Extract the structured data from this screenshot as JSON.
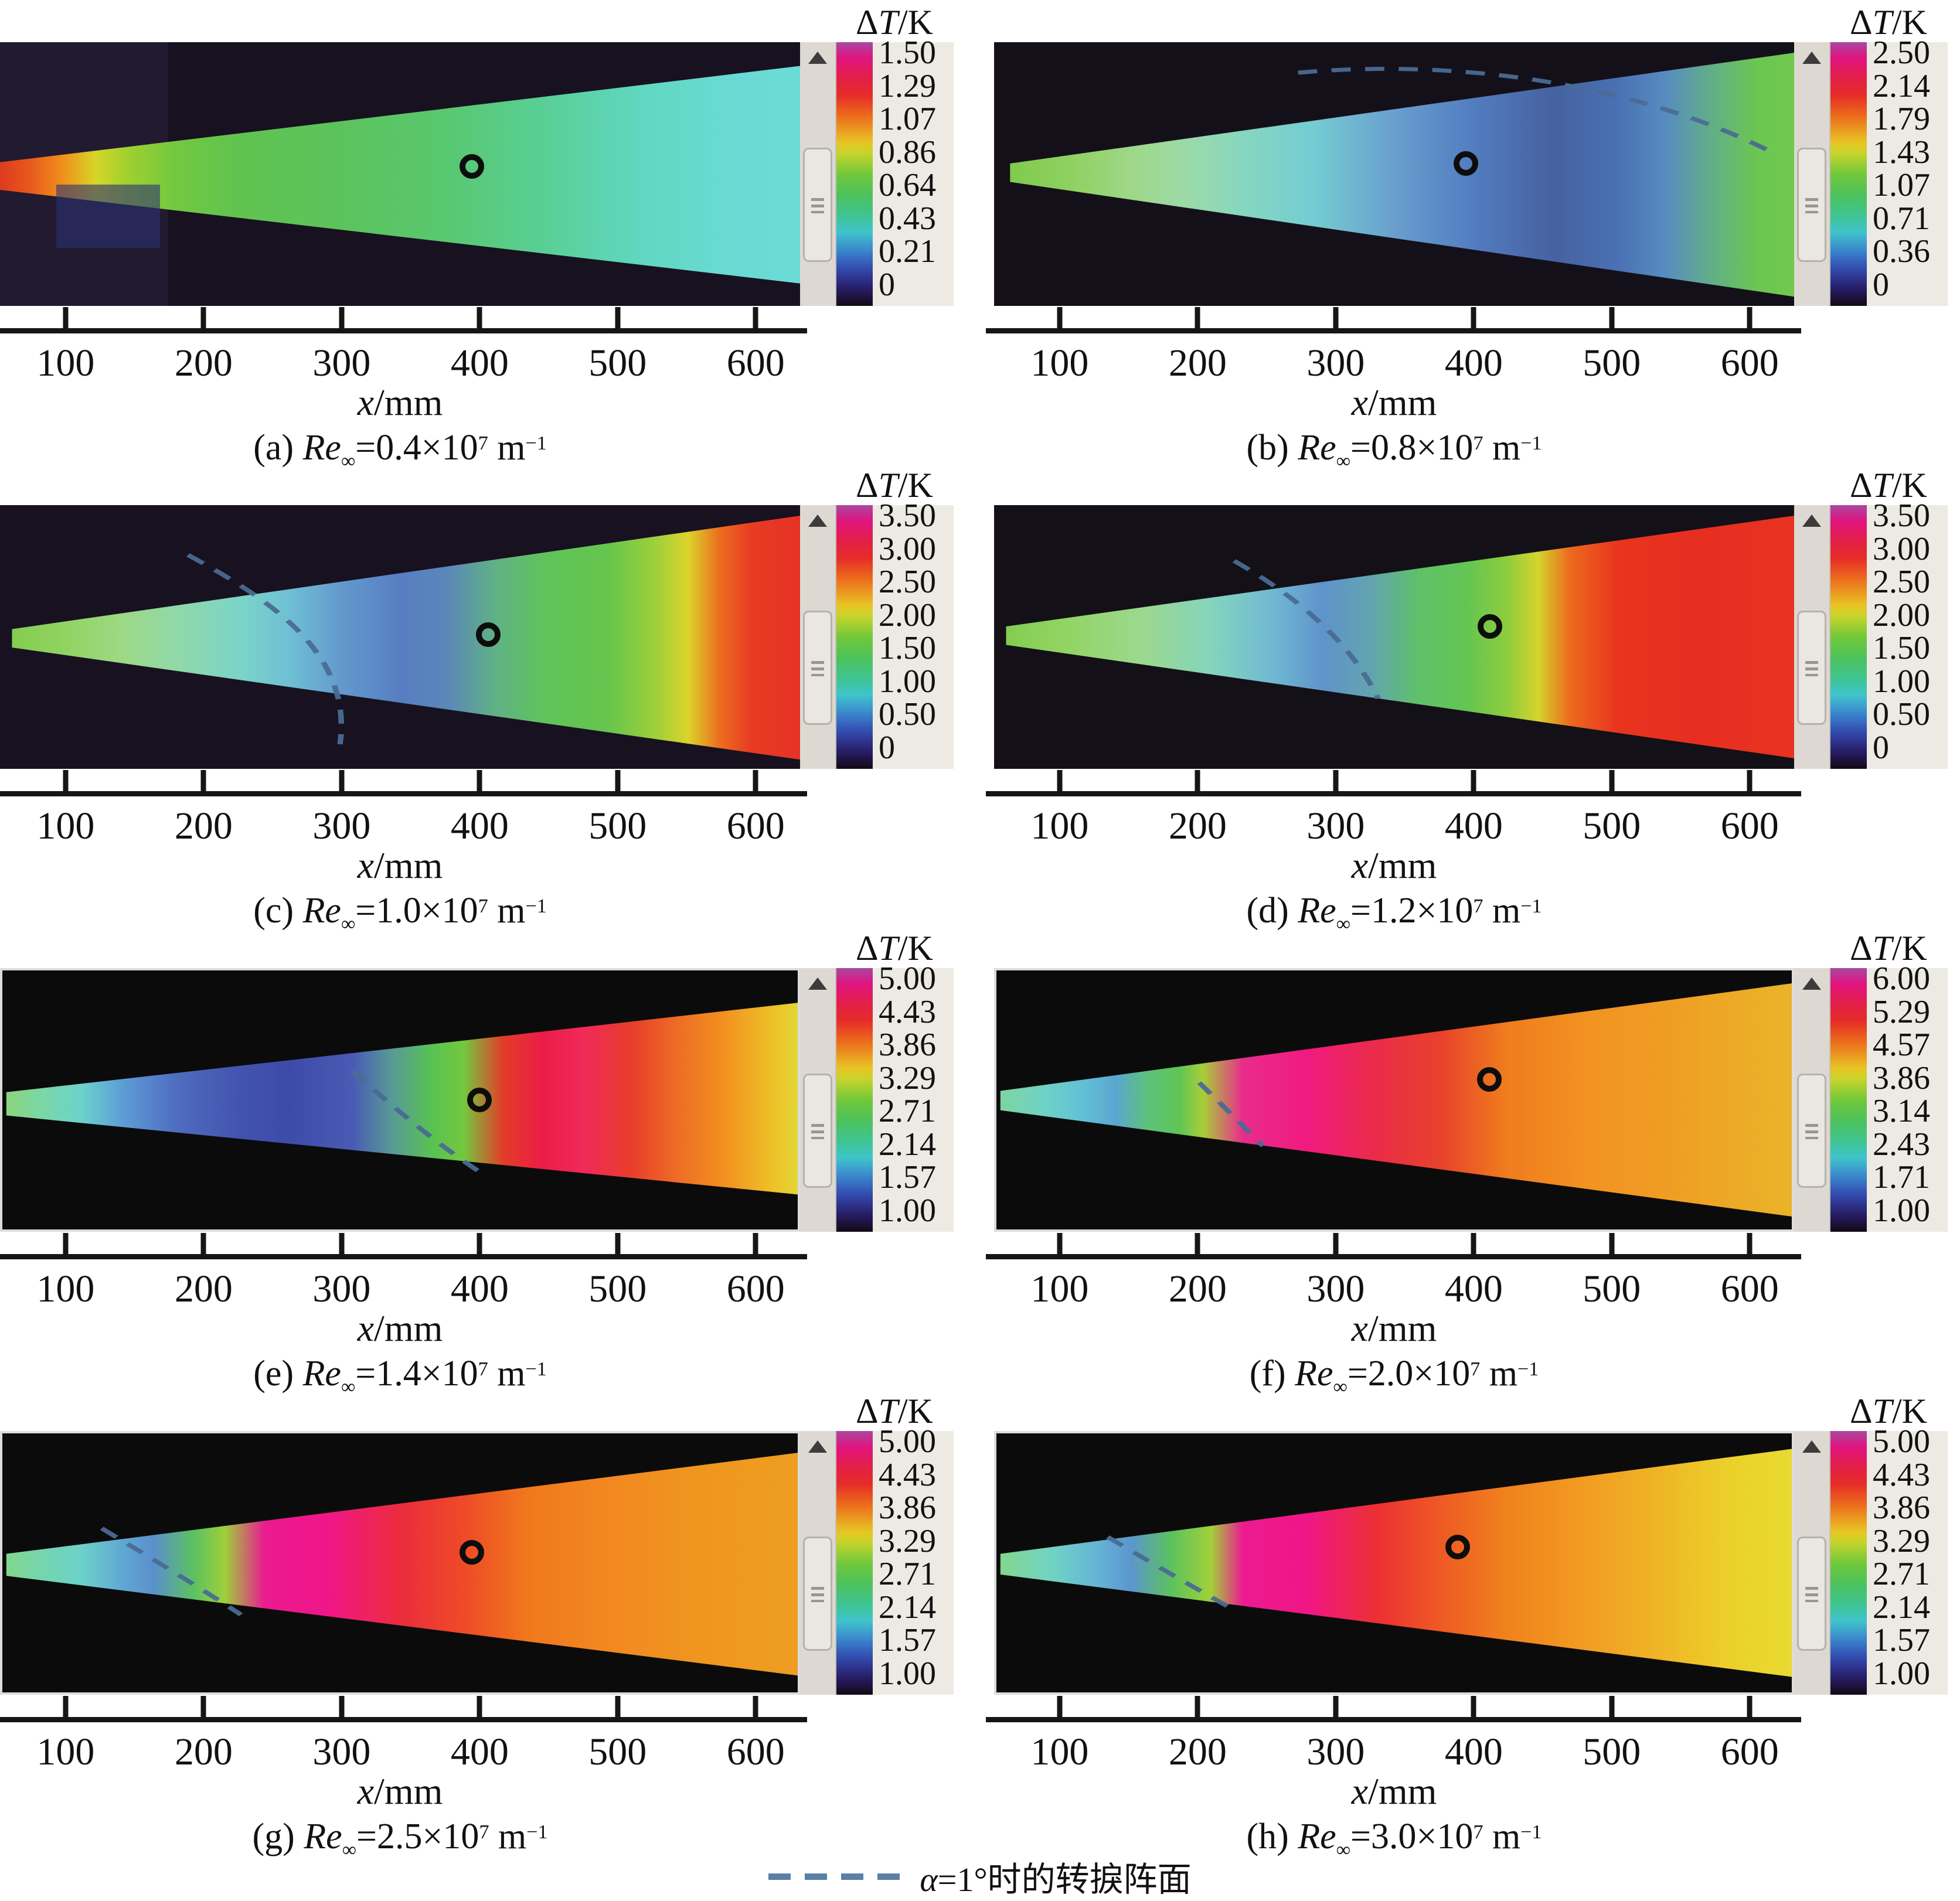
{
  "figure": {
    "colorbar_title": {
      "delta": "Δ",
      "var": "T",
      "rest": "/K"
    },
    "x_axis": {
      "var": "x",
      "rest": "/mm",
      "ticks": [
        "100",
        "200",
        "300",
        "400",
        "500",
        "600"
      ]
    },
    "legend": {
      "var": "α",
      "rest": "=1°时的转捩阵面",
      "dash_color": "#5b7fa6"
    },
    "panels": [
      {
        "id": "a",
        "caption": {
          "prefix": "(a) ",
          "re": "Re",
          "sub": "∞",
          "mid": "=0.4×10",
          "sup": "7",
          "tail": " m",
          "sup2": "−1"
        },
        "colorbar_ticks": [
          "1.50",
          "1.29",
          "1.07",
          "0.86",
          "0.64",
          "0.43",
          "0.21",
          "0"
        ]
      },
      {
        "id": "b",
        "caption": {
          "prefix": "(b) ",
          "re": "Re",
          "sub": "∞",
          "mid": "=0.8×10",
          "sup": "7",
          "tail": " m",
          "sup2": "−1"
        },
        "colorbar_ticks": [
          "2.50",
          "2.14",
          "1.79",
          "1.43",
          "1.07",
          "0.71",
          "0.36",
          "0"
        ]
      },
      {
        "id": "c",
        "caption": {
          "prefix": "(c) ",
          "re": "Re",
          "sub": "∞",
          "mid": "=1.0×10",
          "sup": "7",
          "tail": " m",
          "sup2": "−1"
        },
        "colorbar_ticks": [
          "3.50",
          "3.00",
          "2.50",
          "2.00",
          "1.50",
          "1.00",
          "0.50",
          "0"
        ]
      },
      {
        "id": "d",
        "caption": {
          "prefix": "(d) ",
          "re": "Re",
          "sub": "∞",
          "mid": "=1.2×10",
          "sup": "7",
          "tail": " m",
          "sup2": "−1"
        },
        "colorbar_ticks": [
          "3.50",
          "3.00",
          "2.50",
          "2.00",
          "1.50",
          "1.00",
          "0.50",
          "0"
        ]
      },
      {
        "id": "e",
        "caption": {
          "prefix": "(e) ",
          "re": "Re",
          "sub": "∞",
          "mid": "=1.4×10",
          "sup": "7",
          "tail": " m",
          "sup2": "−1"
        },
        "colorbar_ticks": [
          "5.00",
          "4.43",
          "3.86",
          "3.29",
          "2.71",
          "2.14",
          "1.57",
          "1.00"
        ]
      },
      {
        "id": "f",
        "caption": {
          "prefix": "(f) ",
          "re": "Re",
          "sub": "∞",
          "mid": "=2.0×10",
          "sup": "7",
          "tail": " m",
          "sup2": "−1"
        },
        "colorbar_ticks": [
          "6.00",
          "5.29",
          "4.57",
          "3.86",
          "3.14",
          "2.43",
          "1.71",
          "1.00"
        ]
      },
      {
        "id": "g",
        "caption": {
          "prefix": "(g) ",
          "re": "Re",
          "sub": "∞",
          "mid": "=2.5×10",
          "sup": "7",
          "tail": " m",
          "sup2": "−1"
        },
        "colorbar_ticks": [
          "5.00",
          "4.43",
          "3.86",
          "3.29",
          "2.71",
          "2.14",
          "1.57",
          "1.00"
        ]
      },
      {
        "id": "h",
        "caption": {
          "prefix": "(h) ",
          "re": "Re",
          "sub": "∞",
          "mid": "=3.0×10",
          "sup": "7",
          "tail": " m",
          "sup2": "−1"
        },
        "colorbar_ticks": [
          "5.00",
          "4.43",
          "3.86",
          "3.29",
          "2.71",
          "2.14",
          "1.57",
          "1.00"
        ]
      }
    ]
  },
  "chart_data": [
    {
      "type": "heatmap",
      "panel": "(a)",
      "title": "Re∞=0.4×10⁷ m⁻¹",
      "colorbar_label": "ΔT/K",
      "range": [
        0,
        1.5
      ],
      "colorbar_ticks": [
        1.5,
        1.29,
        1.07,
        0.86,
        0.64,
        0.43,
        0.21,
        0
      ],
      "xlabel": "x/mm",
      "x_ticks": [
        100,
        200,
        300,
        400,
        500,
        600
      ],
      "marker_circle_x_mm": 380,
      "transition_front_dashed": false,
      "profile_dT_vs_x": [
        [
          70,
          1.35
        ],
        [
          120,
          1.1
        ],
        [
          200,
          0.8
        ],
        [
          300,
          0.7
        ],
        [
          400,
          0.6
        ],
        [
          500,
          0.55
        ],
        [
          600,
          0.5
        ]
      ],
      "pattern": "hot red/orange nose tip cooling through green to cyan downstream"
    },
    {
      "type": "heatmap",
      "panel": "(b)",
      "title": "Re∞=0.8×10⁷ m⁻¹",
      "colorbar_label": "ΔT/K",
      "range": [
        0,
        2.5
      ],
      "colorbar_ticks": [
        2.5,
        2.14,
        1.79,
        1.43,
        1.07,
        0.71,
        0.36,
        0
      ],
      "xlabel": "x/mm",
      "x_ticks": [
        100,
        200,
        300,
        400,
        500,
        600
      ],
      "marker_circle_x_mm": 380,
      "transition_front_dashed": true,
      "profile_dT_vs_x": [
        [
          80,
          1.4
        ],
        [
          200,
          1.2
        ],
        [
          300,
          0.9
        ],
        [
          420,
          0.5
        ],
        [
          520,
          0.45
        ],
        [
          600,
          1.2
        ]
      ],
      "pattern": "green nose, cyan midbody, dark-blue cool pocket near rear, green aft edge"
    },
    {
      "type": "heatmap",
      "panel": "(c)",
      "title": "Re∞=1.0×10⁷ m⁻¹",
      "colorbar_label": "ΔT/K",
      "range": [
        0,
        3.5
      ],
      "colorbar_ticks": [
        3.5,
        3.0,
        2.5,
        2.0,
        1.5,
        1.0,
        0.5,
        0
      ],
      "xlabel": "x/mm",
      "x_ticks": [
        100,
        200,
        300,
        400,
        500,
        600
      ],
      "marker_circle_x_mm": 380,
      "transition_front_dashed": true,
      "profile_dT_vs_x": [
        [
          80,
          1.9
        ],
        [
          250,
          1.1
        ],
        [
          380,
          0.8
        ],
        [
          480,
          1.8
        ],
        [
          560,
          3.1
        ],
        [
          600,
          3.2
        ]
      ],
      "pattern": "green nose, speckled blue laminar pocket mid-span, green band, red turbulent aft region"
    },
    {
      "type": "heatmap",
      "panel": "(d)",
      "title": "Re∞=1.2×10⁷ m⁻¹",
      "colorbar_label": "ΔT/K",
      "range": [
        0,
        3.5
      ],
      "colorbar_ticks": [
        3.5,
        3.0,
        2.5,
        2.0,
        1.5,
        1.0,
        0.5,
        0
      ],
      "xlabel": "x/mm",
      "x_ticks": [
        100,
        200,
        300,
        400,
        500,
        600
      ],
      "marker_circle_x_mm": 380,
      "transition_front_dashed": true,
      "profile_dT_vs_x": [
        [
          80,
          1.9
        ],
        [
          300,
          1.0
        ],
        [
          400,
          1.8
        ],
        [
          470,
          3.0
        ],
        [
          600,
          3.0
        ]
      ],
      "pattern": "green nose, blue pocket around 300 mm, red turbulent region from ~450 mm aft"
    },
    {
      "type": "heatmap",
      "panel": "(e)",
      "title": "Re∞=1.4×10⁷ m⁻¹",
      "colorbar_label": "ΔT/K",
      "range": [
        1,
        5
      ],
      "colorbar_ticks": [
        5.0,
        4.43,
        3.86,
        3.29,
        2.71,
        2.14,
        1.57,
        1.0
      ],
      "xlabel": "x/mm",
      "x_ticks": [
        100,
        200,
        300,
        400,
        500,
        600
      ],
      "marker_circle_x_mm": 380,
      "transition_front_dashed": true,
      "profile_dT_vs_x": [
        [
          70,
          3.1
        ],
        [
          150,
          2.2
        ],
        [
          250,
          1.5
        ],
        [
          350,
          3.0
        ],
        [
          420,
          4.6
        ],
        [
          500,
          4.1
        ],
        [
          600,
          3.9
        ]
      ],
      "pattern": "green tip, dark-blue laminar zone to ~330 mm, red/crimson transition peak, orange turbulent aft"
    },
    {
      "type": "heatmap",
      "panel": "(f)",
      "title": "Re∞=2.0×10⁷ m⁻¹",
      "colorbar_label": "ΔT/K",
      "range": [
        1,
        6
      ],
      "colorbar_ticks": [
        6.0,
        5.29,
        4.57,
        3.86,
        3.14,
        2.43,
        1.71,
        1.0
      ],
      "xlabel": "x/mm",
      "x_ticks": [
        100,
        200,
        300,
        400,
        500,
        600
      ],
      "marker_circle_x_mm": 380,
      "transition_front_dashed": true,
      "profile_dT_vs_x": [
        [
          100,
          2.6
        ],
        [
          200,
          3.5
        ],
        [
          280,
          5.8
        ],
        [
          350,
          5.3
        ],
        [
          450,
          4.6
        ],
        [
          600,
          4.4
        ]
      ],
      "pattern": "cyan nose, narrow green band, magenta/red transition peak near 280 mm, orange turbulent aft"
    },
    {
      "type": "heatmap",
      "panel": "(g)",
      "title": "Re∞=2.5×10⁷ m⁻¹",
      "colorbar_label": "ΔT/K",
      "range": [
        1,
        5
      ],
      "colorbar_ticks": [
        5.0,
        4.43,
        3.86,
        3.29,
        2.71,
        2.14,
        1.57,
        1.0
      ],
      "xlabel": "x/mm",
      "x_ticks": [
        100,
        200,
        300,
        400,
        500,
        600
      ],
      "marker_circle_x_mm": 380,
      "transition_front_dashed": true,
      "profile_dT_vs_x": [
        [
          90,
          2.9
        ],
        [
          170,
          2.3
        ],
        [
          250,
          4.9
        ],
        [
          320,
          4.4
        ],
        [
          450,
          3.9
        ],
        [
          600,
          3.8
        ]
      ],
      "pattern": "cyan/blue nose pocket, green rim, magenta transition peak near 250 mm, broad orange turbulent aft"
    },
    {
      "type": "heatmap",
      "panel": "(h)",
      "title": "Re∞=3.0×10⁷ m⁻¹",
      "colorbar_label": "ΔT/K",
      "range": [
        1,
        5
      ],
      "colorbar_ticks": [
        5.0,
        4.43,
        3.86,
        3.29,
        2.71,
        2.14,
        1.57,
        1.0
      ],
      "xlabel": "x/mm",
      "x_ticks": [
        100,
        200,
        300,
        400,
        500,
        600
      ],
      "marker_circle_x_mm": 380,
      "transition_front_dashed": true,
      "profile_dT_vs_x": [
        [
          90,
          2.9
        ],
        [
          170,
          2.2
        ],
        [
          250,
          4.9
        ],
        [
          330,
          4.3
        ],
        [
          450,
          3.9
        ],
        [
          600,
          3.4
        ]
      ],
      "pattern": "cyan/blue nose pocket, magenta transition peak near 250 mm, orange fading to yellow at aft end"
    }
  ]
}
